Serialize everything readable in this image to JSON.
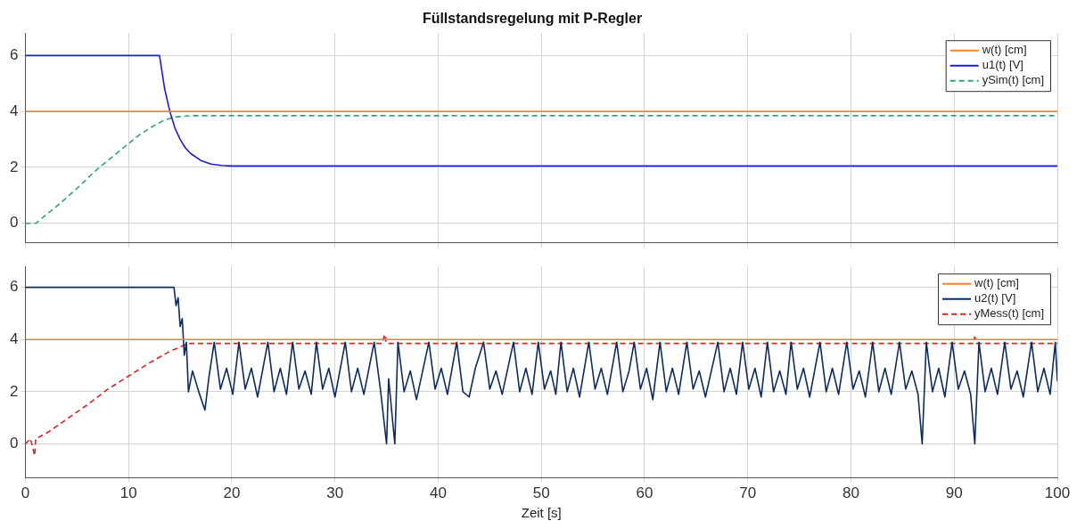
{
  "chart_data": [
    {
      "type": "line",
      "title": "Füllstandsregelung mit P-Regler",
      "xlim": [
        0,
        100
      ],
      "xticks": [
        0,
        10,
        20,
        30,
        40,
        50,
        60,
        70,
        80,
        90,
        100
      ],
      "ylim": [
        -0.7,
        6.8
      ],
      "yticks": [
        0,
        2,
        4,
        6
      ],
      "grid": true,
      "legend": "top right",
      "tick_labels": "y",
      "series": [
        {
          "name": "w(t) [cm]",
          "color": "#f0862a",
          "line_style": "solid",
          "x": [
            0,
            100
          ],
          "values": [
            4,
            4
          ]
        },
        {
          "name": "u1(t) [V]",
          "color": "#1a1ae6",
          "line_style": "solid",
          "x": [
            0,
            13,
            13.5,
            14,
            14.5,
            15,
            15.5,
            16,
            17,
            18,
            19,
            20,
            100
          ],
          "values": [
            6,
            6,
            4.8,
            4.0,
            3.4,
            3.0,
            2.7,
            2.5,
            2.25,
            2.12,
            2.07,
            2.05,
            2.05
          ]
        },
        {
          "name": "ySim(t) [cm]",
          "color": "#2aa876",
          "line_style": "dashed",
          "x": [
            0,
            1,
            3,
            5,
            7,
            9,
            11,
            12.5,
            13.5,
            14.5,
            16,
            100
          ],
          "values": [
            0,
            0,
            0.6,
            1.25,
            1.95,
            2.55,
            3.15,
            3.5,
            3.7,
            3.8,
            3.85,
            3.85
          ]
        }
      ]
    },
    {
      "type": "line",
      "xlabel": "Zeit [s]",
      "xlim": [
        0,
        100
      ],
      "xticks": [
        0,
        10,
        20,
        30,
        40,
        50,
        60,
        70,
        80,
        90,
        100
      ],
      "ylim": [
        -1.3,
        6.8
      ],
      "yticks": [
        0,
        2,
        4,
        6
      ],
      "grid": true,
      "legend": "top right",
      "series": [
        {
          "name": "w(t) [cm]",
          "color": "#f0862a",
          "line_style": "solid",
          "x": [
            0,
            100
          ],
          "values": [
            4,
            4
          ]
        },
        {
          "name": "u2(t) [V]",
          "color": "#0c2a66",
          "line_style": "solid",
          "x": [
            0,
            14.4,
            14.6,
            14.8,
            15.0,
            15.2,
            15.4,
            15.6,
            15.8,
            16.2,
            16.8,
            17.4,
            17.8,
            18.3,
            18.9,
            19.5,
            20.1,
            20.7,
            21.3,
            21.9,
            22.5,
            23.5,
            24.1,
            24.7,
            25.3,
            25.9,
            26.5,
            27.1,
            27.7,
            28.2,
            28.8,
            29.4,
            30.0,
            31.0,
            31.6,
            32.2,
            32.8,
            33.8,
            34.4,
            35.0,
            35.2,
            35.8,
            36.1,
            36.7,
            37.3,
            37.9,
            39.1,
            39.7,
            40.3,
            40.9,
            41.8,
            42.4,
            43.0,
            43.6,
            44.4,
            45.0,
            45.6,
            46.2,
            47.3,
            47.9,
            48.5,
            49.1,
            49.7,
            50.3,
            50.9,
            51.4,
            51.9,
            52.5,
            53.1,
            53.7,
            54.6,
            55.2,
            55.8,
            56.4,
            57.3,
            57.9,
            58.5,
            59.0,
            59.6,
            60.2,
            60.8,
            61.5,
            62.1,
            62.7,
            63.3,
            64.1,
            64.7,
            65.3,
            65.9,
            67.1,
            67.7,
            68.3,
            68.9,
            69.5,
            70.1,
            70.7,
            71.3,
            71.9,
            72.5,
            73.1,
            73.7,
            74.2,
            74.8,
            75.4,
            76.0,
            77.0,
            77.6,
            78.2,
            78.8,
            79.6,
            80.2,
            80.8,
            81.4,
            82.1,
            82.7,
            83.3,
            83.9,
            84.7,
            85.3,
            85.9,
            86.5,
            86.9,
            87.3,
            87.9,
            88.5,
            89.1,
            89.8,
            90.4,
            91.0,
            91.6,
            92.0,
            92.4,
            93.0,
            93.6,
            94.2,
            94.9,
            95.5,
            96.1,
            96.7,
            97.5,
            98.1,
            98.7,
            99.3,
            99.8,
            100
          ],
          "values": [
            6,
            6,
            5.3,
            5.6,
            4.5,
            4.8,
            3.4,
            3.9,
            2.0,
            2.8,
            2.0,
            1.3,
            2.6,
            3.9,
            2.1,
            2.9,
            1.9,
            3.9,
            2.1,
            2.9,
            1.8,
            3.9,
            2.0,
            2.9,
            1.9,
            3.9,
            2.1,
            2.8,
            1.9,
            3.9,
            2.1,
            2.9,
            1.8,
            3.9,
            2.0,
            2.9,
            1.9,
            3.9,
            2.1,
            0,
            2.5,
            0,
            3.9,
            2.0,
            2.8,
            1.7,
            3.9,
            2.1,
            2.9,
            1.9,
            3.9,
            2.0,
            1.8,
            2.9,
            3.9,
            2.1,
            2.8,
            1.9,
            3.9,
            2.0,
            2.9,
            1.9,
            3.9,
            2.1,
            2.8,
            1.9,
            3.9,
            2.0,
            2.9,
            1.8,
            3.9,
            2.1,
            2.9,
            1.9,
            3.9,
            2.0,
            2.8,
            3.9,
            2.1,
            2.9,
            1.7,
            3.9,
            2.0,
            2.9,
            1.9,
            3.9,
            2.1,
            2.8,
            1.8,
            3.9,
            2.0,
            2.9,
            1.9,
            3.9,
            2.1,
            2.9,
            1.8,
            3.9,
            2.0,
            2.8,
            1.9,
            3.9,
            2.1,
            2.9,
            1.8,
            3.9,
            2.0,
            2.9,
            1.9,
            3.9,
            2.1,
            2.8,
            1.8,
            3.9,
            2.0,
            2.9,
            1.9,
            3.9,
            2.1,
            2.8,
            1.9,
            0,
            3.9,
            2.0,
            2.9,
            1.8,
            3.9,
            2.1,
            2.8,
            1.9,
            0,
            3.9,
            2.0,
            2.9,
            1.9,
            3.9,
            2.1,
            2.8,
            1.8,
            3.9,
            2.0,
            2.9,
            1.9,
            3.9,
            2.4
          ]
        },
        {
          "name": "yMess(t) [cm]",
          "color": "#e8201f",
          "line_style": "dashed",
          "x": [
            0,
            0.5,
            0.9,
            1.0,
            2,
            4,
            6,
            8,
            10,
            12,
            14,
            15.5,
            16,
            20,
            34.6,
            34.8,
            35.0,
            50,
            70,
            91.8,
            92.0,
            92.2,
            100
          ],
          "values": [
            0,
            0.2,
            -0.45,
            0.2,
            0.4,
            0.95,
            1.5,
            2.1,
            2.6,
            3.1,
            3.55,
            3.8,
            3.85,
            3.85,
            3.85,
            4.2,
            3.85,
            3.85,
            3.85,
            3.85,
            4.1,
            3.85,
            3.85
          ]
        }
      ]
    }
  ]
}
